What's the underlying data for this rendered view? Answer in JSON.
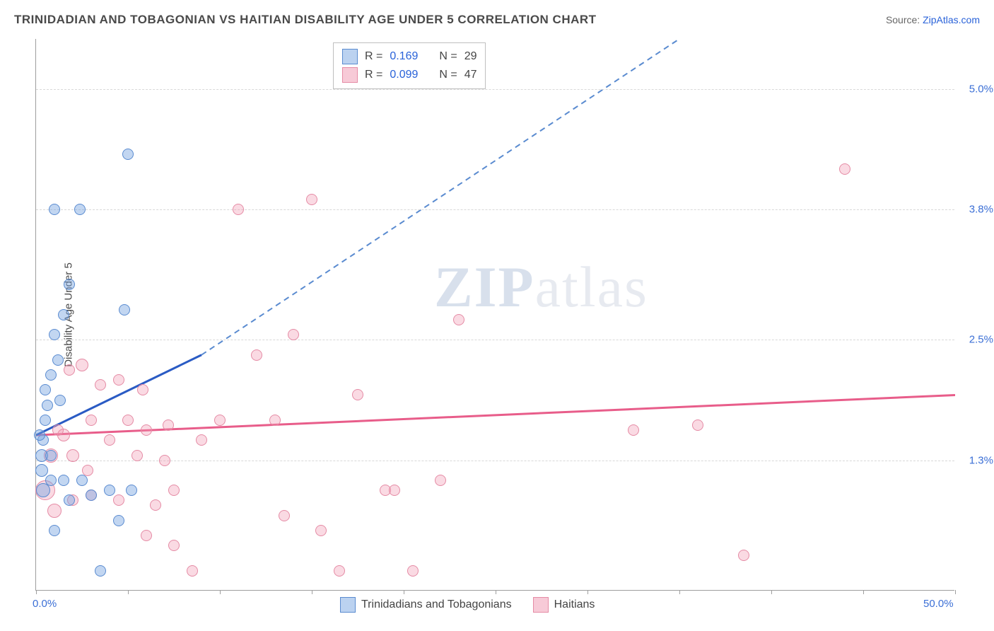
{
  "title": "TRINIDADIAN AND TOBAGONIAN VS HAITIAN DISABILITY AGE UNDER 5 CORRELATION CHART",
  "source_label": "Source: ",
  "source_link": "ZipAtlas.com",
  "ylabel": "Disability Age Under 5",
  "watermark": "ZIPatlas",
  "chart": {
    "type": "scatter",
    "xlim": [
      0,
      50
    ],
    "ylim": [
      0,
      5.5
    ],
    "xtick_labels": [
      "0.0%",
      "50.0%"
    ],
    "xtick_positions": [
      0,
      50
    ],
    "xtick_marks": [
      0,
      5,
      10,
      15,
      20,
      25,
      30,
      35,
      40,
      45,
      50
    ],
    "ytick_labels": [
      "1.3%",
      "2.5%",
      "3.8%",
      "5.0%"
    ],
    "ytick_positions": [
      1.3,
      2.5,
      3.8,
      5.0
    ],
    "grid_color": "#d8d8d8",
    "background": "#ffffff",
    "series": {
      "blue": {
        "label": "Trinidadians and Tobagonians",
        "color_fill": "rgba(120,165,225,0.45)",
        "color_stroke": "#5a8bd0",
        "R": "0.169",
        "N": "29",
        "trend": {
          "x1": 0,
          "y1": 1.55,
          "x2": 9,
          "y2": 2.35,
          "dash_to_x": 35,
          "dash_to_y": 5.5
        },
        "points": [
          {
            "x": 0.3,
            "y": 1.35,
            "r": 9
          },
          {
            "x": 0.4,
            "y": 1.5,
            "r": 8
          },
          {
            "x": 0.5,
            "y": 1.7,
            "r": 8
          },
          {
            "x": 0.6,
            "y": 1.85,
            "r": 8
          },
          {
            "x": 0.5,
            "y": 2.0,
            "r": 8
          },
          {
            "x": 0.8,
            "y": 2.15,
            "r": 8
          },
          {
            "x": 1.0,
            "y": 2.55,
            "r": 8
          },
          {
            "x": 1.2,
            "y": 2.3,
            "r": 8
          },
          {
            "x": 1.5,
            "y": 2.75,
            "r": 8
          },
          {
            "x": 1.8,
            "y": 3.05,
            "r": 8
          },
          {
            "x": 1.0,
            "y": 3.8,
            "r": 8
          },
          {
            "x": 2.4,
            "y": 3.8,
            "r": 8
          },
          {
            "x": 5.0,
            "y": 4.35,
            "r": 8
          },
          {
            "x": 4.8,
            "y": 2.8,
            "r": 8
          },
          {
            "x": 0.3,
            "y": 1.2,
            "r": 9
          },
          {
            "x": 0.4,
            "y": 1.0,
            "r": 10
          },
          {
            "x": 0.8,
            "y": 1.1,
            "r": 8
          },
          {
            "x": 1.5,
            "y": 1.1,
            "r": 8
          },
          {
            "x": 2.5,
            "y": 1.1,
            "r": 8
          },
          {
            "x": 3.0,
            "y": 0.95,
            "r": 8
          },
          {
            "x": 4.0,
            "y": 1.0,
            "r": 8
          },
          {
            "x": 5.2,
            "y": 1.0,
            "r": 8
          },
          {
            "x": 3.5,
            "y": 0.2,
            "r": 8
          },
          {
            "x": 4.5,
            "y": 0.7,
            "r": 8
          },
          {
            "x": 1.0,
            "y": 0.6,
            "r": 8
          },
          {
            "x": 1.8,
            "y": 0.9,
            "r": 8
          },
          {
            "x": 0.8,
            "y": 1.35,
            "r": 8
          },
          {
            "x": 1.3,
            "y": 1.9,
            "r": 8
          },
          {
            "x": 0.2,
            "y": 1.55,
            "r": 8
          }
        ]
      },
      "pink": {
        "label": "Haitians",
        "color_fill": "rgba(240,150,175,0.35)",
        "color_stroke": "#e58ba5",
        "R": "0.099",
        "N": "47",
        "trend": {
          "x1": 0,
          "y1": 1.55,
          "x2": 50,
          "y2": 1.95
        },
        "points": [
          {
            "x": 0.5,
            "y": 1.0,
            "r": 14
          },
          {
            "x": 0.8,
            "y": 1.35,
            "r": 10
          },
          {
            "x": 1.5,
            "y": 1.55,
            "r": 9
          },
          {
            "x": 2.0,
            "y": 1.35,
            "r": 9
          },
          {
            "x": 2.5,
            "y": 2.25,
            "r": 9
          },
          {
            "x": 3.0,
            "y": 1.7,
            "r": 8
          },
          {
            "x": 3.5,
            "y": 2.05,
            "r": 8
          },
          {
            "x": 4.0,
            "y": 1.5,
            "r": 8
          },
          {
            "x": 4.5,
            "y": 2.1,
            "r": 8
          },
          {
            "x": 5.0,
            "y": 1.7,
            "r": 8
          },
          {
            "x": 5.5,
            "y": 1.35,
            "r": 8
          },
          {
            "x": 6.0,
            "y": 1.6,
            "r": 8
          },
          {
            "x": 6.5,
            "y": 0.85,
            "r": 8
          },
          {
            "x": 7.0,
            "y": 1.3,
            "r": 8
          },
          {
            "x": 7.5,
            "y": 1.0,
            "r": 8
          },
          {
            "x": 2.0,
            "y": 0.9,
            "r": 8
          },
          {
            "x": 3.0,
            "y": 0.95,
            "r": 8
          },
          {
            "x": 4.5,
            "y": 0.9,
            "r": 8
          },
          {
            "x": 6.0,
            "y": 0.55,
            "r": 8
          },
          {
            "x": 7.5,
            "y": 0.45,
            "r": 8
          },
          {
            "x": 8.5,
            "y": 0.2,
            "r": 8
          },
          {
            "x": 10.0,
            "y": 1.7,
            "r": 8
          },
          {
            "x": 11.0,
            "y": 3.8,
            "r": 8
          },
          {
            "x": 12.0,
            "y": 2.35,
            "r": 8
          },
          {
            "x": 13.0,
            "y": 1.7,
            "r": 8
          },
          {
            "x": 13.5,
            "y": 0.75,
            "r": 8
          },
          {
            "x": 14.0,
            "y": 2.55,
            "r": 8
          },
          {
            "x": 15.0,
            "y": 3.9,
            "r": 8
          },
          {
            "x": 15.5,
            "y": 0.6,
            "r": 8
          },
          {
            "x": 16.5,
            "y": 0.2,
            "r": 8
          },
          {
            "x": 17.5,
            "y": 1.95,
            "r": 8
          },
          {
            "x": 19.0,
            "y": 1.0,
            "r": 8
          },
          {
            "x": 19.5,
            "y": 1.0,
            "r": 8
          },
          {
            "x": 20.5,
            "y": 0.2,
            "r": 8
          },
          {
            "x": 22.0,
            "y": 1.1,
            "r": 8
          },
          {
            "x": 23.0,
            "y": 2.7,
            "r": 8
          },
          {
            "x": 32.5,
            "y": 1.6,
            "r": 8
          },
          {
            "x": 36.0,
            "y": 1.65,
            "r": 8
          },
          {
            "x": 38.5,
            "y": 0.35,
            "r": 8
          },
          {
            "x": 44.0,
            "y": 4.2,
            "r": 8
          },
          {
            "x": 1.0,
            "y": 0.8,
            "r": 10
          },
          {
            "x": 1.2,
            "y": 1.6,
            "r": 8
          },
          {
            "x": 1.8,
            "y": 2.2,
            "r": 8
          },
          {
            "x": 2.8,
            "y": 1.2,
            "r": 8
          },
          {
            "x": 5.8,
            "y": 2.0,
            "r": 8
          },
          {
            "x": 7.2,
            "y": 1.65,
            "r": 8
          },
          {
            "x": 9.0,
            "y": 1.5,
            "r": 8
          }
        ]
      }
    }
  },
  "legend_top": {
    "row1": {
      "R_lab": "R =",
      "R_val": "0.169",
      "N_lab": "N =",
      "N_val": "29"
    },
    "row2": {
      "R_lab": "R =",
      "R_val": "0.099",
      "N_lab": "N =",
      "N_val": "47"
    }
  }
}
